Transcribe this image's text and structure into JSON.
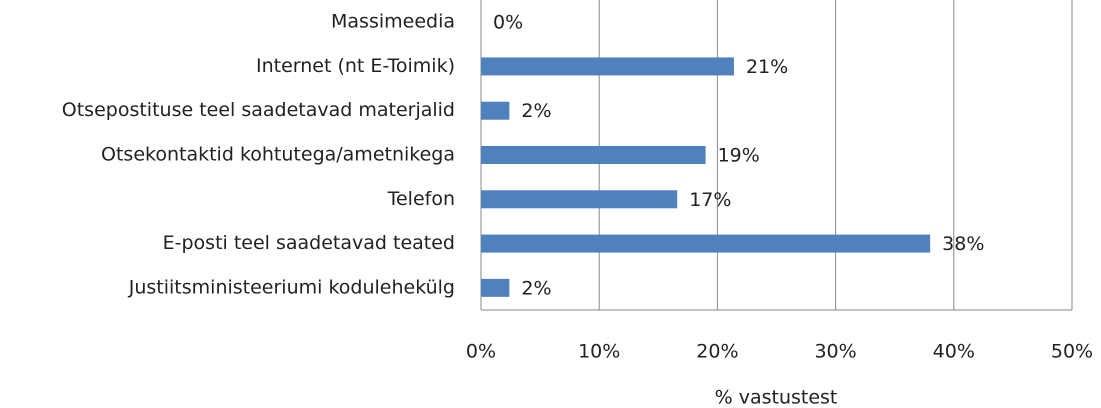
{
  "chart_data": {
    "type": "hbar",
    "categories": [
      "Massimeedia",
      "Internet (nt E-Toimik)",
      "Otsepostituse teel saadetavad materjalid",
      "Otsekontaktid kohtutega/ametnikega",
      "Telefon",
      "E-posti teel saadetavad teated",
      "Justiitsministeeriumi kodulehekülg"
    ],
    "values": [
      0,
      21.4,
      2.4,
      19,
      16.6,
      38,
      2.4
    ],
    "value_labels": [
      "0%",
      "21%",
      "2%",
      "19%",
      "17%",
      "38%",
      "2%"
    ],
    "color": "#4f81bd",
    "x_label": "% vastustest",
    "xlim": [
      0,
      50
    ],
    "xticks": [
      {
        "value": 0,
        "label": "0%"
      },
      {
        "value": 10,
        "label": "10%"
      },
      {
        "value": 20,
        "label": "20%"
      },
      {
        "value": 30,
        "label": "30%"
      },
      {
        "value": 40,
        "label": "40%"
      },
      {
        "value": 50,
        "label": "50%"
      }
    ],
    "grid": true
  }
}
